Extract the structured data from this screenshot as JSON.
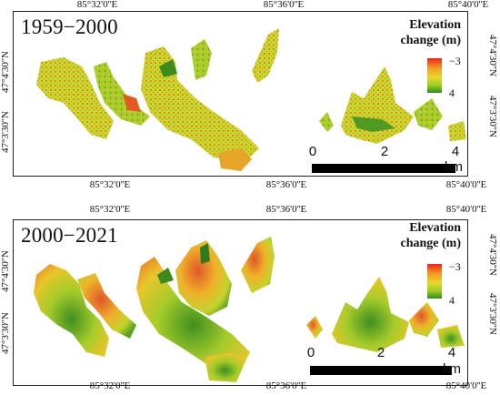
{
  "map": {
    "legend_colors": {
      "max": "#e8261c",
      "mid": "#e6d92b",
      "min": "#2f8a1e"
    },
    "panels": [
      {
        "period": "1959−2000",
        "legend_title_line1": "Elevation",
        "legend_title_line2": "change (m)",
        "legend_max": "−3",
        "legend_min": "4",
        "lon_ticks_top": [
          "85°32'0''E",
          "85°36'0''E",
          "85°40'0''E"
        ],
        "lon_ticks_bottom": [
          "85°32'0''E",
          "85°36'0''E",
          "85°40'0''E"
        ],
        "lat_ticks_left": [
          "47°4'30''N",
          "47°3'30''N"
        ],
        "lat_ticks_right": [
          "47°4'30''N",
          "47°3'30''N"
        ],
        "scale_labels": [
          "0",
          "2",
          "4"
        ],
        "scale_unit": "km"
      },
      {
        "period": "2000−2021",
        "legend_title_line1": "Elevation",
        "legend_title_line2": "change (m)",
        "legend_max": "−3",
        "legend_min": "4",
        "lon_ticks_top": [
          "85°32'0''E",
          "85°36'0''E",
          "85°40'0''E"
        ],
        "lon_ticks_bottom": [
          "85°32'0''E",
          "85°36'0''E",
          "85°40'0''E"
        ],
        "lat_ticks_left": [
          "47°4'30''N",
          "47°3'30''N"
        ],
        "lat_ticks_right": [
          "47°4'30''N",
          "47°3'30''N"
        ],
        "scale_labels": [
          "0",
          "2",
          "4"
        ],
        "scale_unit": "km"
      }
    ]
  }
}
